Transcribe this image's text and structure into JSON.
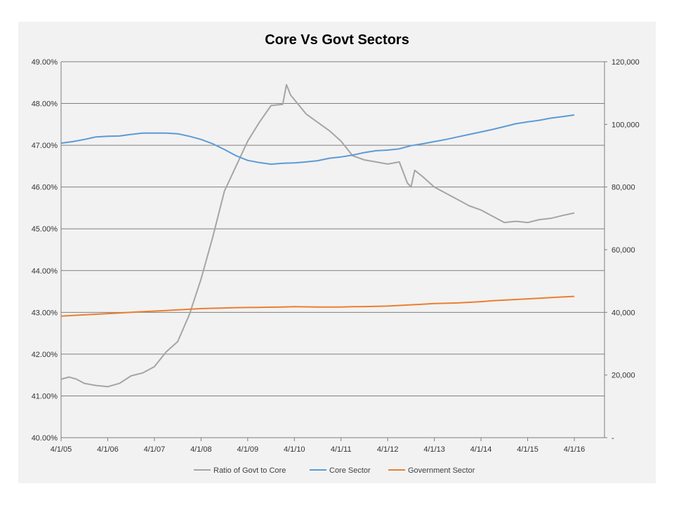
{
  "chart_data": {
    "type": "line",
    "title": "Core Vs Govt Sectors",
    "xlabel": "",
    "ylabel": "",
    "x_ticks": [
      "4/1/05",
      "4/1/06",
      "4/1/07",
      "4/1/08",
      "4/1/09",
      "4/1/10",
      "4/1/11",
      "4/1/12",
      "4/1/13",
      "4/1/14",
      "4/1/15",
      "4/1/16"
    ],
    "y_left": {
      "min": 40,
      "max": 49,
      "ticks": [
        "40.00%",
        "41.00%",
        "42.00%",
        "43.00%",
        "44.00%",
        "45.00%",
        "46.00%",
        "47.00%",
        "48.00%",
        "49.00%"
      ]
    },
    "y_right": {
      "min": 0,
      "max": 120000,
      "ticks": [
        "-",
        "20,000",
        "40,000",
        "60,000",
        "80,000",
        "100,000",
        "120,000"
      ]
    },
    "grid": true,
    "legend_position": "bottom",
    "series": [
      {
        "name": "Ratio of Govt to Core",
        "axis": "left",
        "color": "#a5a5a5",
        "x": [
          2005.25,
          2005.42,
          2005.58,
          2005.75,
          2006.0,
          2006.25,
          2006.5,
          2006.75,
          2007.0,
          2007.25,
          2007.5,
          2007.75,
          2008.0,
          2008.25,
          2008.5,
          2008.75,
          2009.0,
          2009.25,
          2009.5,
          2009.75,
          2010.0,
          2010.08,
          2010.17,
          2010.5,
          2010.75,
          2011.0,
          2011.25,
          2011.5,
          2011.75,
          2012.0,
          2012.25,
          2012.5,
          2012.67,
          2012.75,
          2012.83,
          2013.0,
          2013.25,
          2013.5,
          2013.75,
          2014.0,
          2014.25,
          2014.5,
          2014.75,
          2015.0,
          2015.25,
          2015.5,
          2015.75,
          2016.0,
          2016.25
        ],
        "y": [
          41.4,
          41.45,
          41.4,
          41.3,
          41.25,
          41.22,
          41.3,
          41.48,
          41.55,
          41.7,
          42.05,
          42.3,
          42.95,
          43.8,
          44.8,
          45.9,
          46.5,
          47.1,
          47.55,
          47.95,
          47.98,
          48.45,
          48.2,
          47.75,
          47.55,
          47.35,
          47.1,
          46.75,
          46.65,
          46.6,
          46.55,
          46.6,
          46.1,
          46.0,
          46.4,
          46.25,
          46.0,
          45.85,
          45.7,
          45.55,
          45.45,
          45.3,
          45.15,
          45.18,
          45.15,
          45.22,
          45.25,
          45.32,
          45.38
        ]
      },
      {
        "name": "Core Sector",
        "axis": "right",
        "color": "#5b9bd5",
        "x": [
          2005.25,
          2005.5,
          2005.75,
          2006.0,
          2006.25,
          2006.5,
          2006.75,
          2007.0,
          2007.25,
          2007.5,
          2007.75,
          2008.0,
          2008.25,
          2008.5,
          2008.75,
          2009.0,
          2009.25,
          2009.5,
          2009.75,
          2010.0,
          2010.25,
          2010.5,
          2010.75,
          2011.0,
          2011.25,
          2011.5,
          2011.75,
          2012.0,
          2012.25,
          2012.5,
          2012.75,
          2013.0,
          2013.25,
          2013.5,
          2013.75,
          2014.0,
          2014.25,
          2014.5,
          2014.75,
          2015.0,
          2015.25,
          2015.5,
          2015.75,
          2016.0,
          2016.25
        ],
        "y": [
          94000,
          94500,
          95200,
          96000,
          96200,
          96300,
          96800,
          97200,
          97200,
          97200,
          97000,
          96200,
          95200,
          93800,
          92000,
          90000,
          88500,
          87800,
          87300,
          87600,
          87700,
          88000,
          88400,
          89200,
          89600,
          90200,
          91000,
          91600,
          91800,
          92200,
          93200,
          93800,
          94500,
          95200,
          96000,
          96800,
          97600,
          98400,
          99300,
          100200,
          100800,
          101300,
          102000,
          102500,
          103000
        ]
      },
      {
        "name": "Government Sector",
        "axis": "right",
        "color": "#ed7d31",
        "x": [
          2005.25,
          2005.5,
          2005.75,
          2006.0,
          2006.25,
          2006.5,
          2006.75,
          2007.0,
          2007.25,
          2007.5,
          2007.75,
          2008.0,
          2008.25,
          2008.5,
          2008.75,
          2009.0,
          2009.25,
          2009.5,
          2009.75,
          2010.0,
          2010.25,
          2010.5,
          2010.75,
          2011.0,
          2011.25,
          2011.5,
          2011.75,
          2012.0,
          2012.25,
          2012.5,
          2012.75,
          2013.0,
          2013.25,
          2013.5,
          2013.75,
          2014.0,
          2014.25,
          2014.5,
          2014.75,
          2015.0,
          2015.25,
          2015.5,
          2015.75,
          2016.0,
          2016.25
        ],
        "y": [
          38800,
          39000,
          39200,
          39400,
          39600,
          39800,
          40000,
          40200,
          40400,
          40600,
          40800,
          41000,
          41200,
          41300,
          41400,
          41500,
          41550,
          41600,
          41650,
          41700,
          41800,
          41750,
          41700,
          41700,
          41700,
          41800,
          41850,
          41900,
          42000,
          42200,
          42400,
          42600,
          42800,
          42900,
          43000,
          43200,
          43400,
          43700,
          43900,
          44100,
          44300,
          44500,
          44700,
          44900,
          45100
        ]
      }
    ]
  }
}
